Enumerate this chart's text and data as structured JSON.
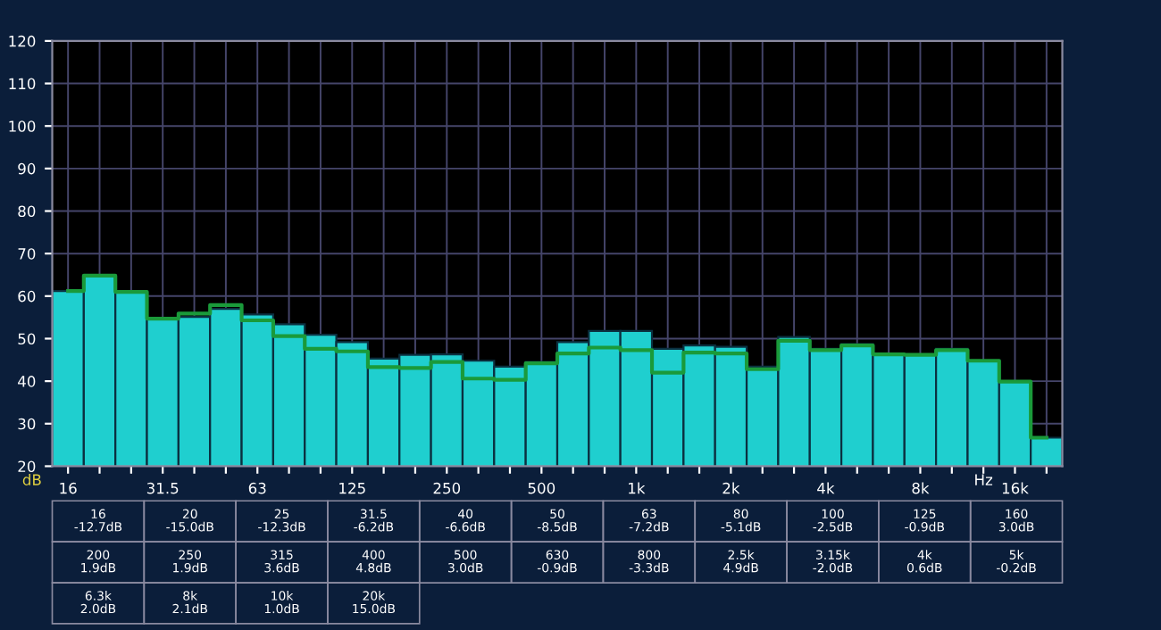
{
  "chart_data": {
    "type": "bar",
    "categories": [
      "16",
      null,
      null,
      "31.5",
      null,
      null,
      "63",
      null,
      null,
      "125",
      null,
      null,
      "250",
      null,
      null,
      "500",
      null,
      null,
      "1k",
      null,
      null,
      "2k",
      null,
      null,
      "4k",
      null,
      null,
      "8k",
      null,
      null,
      "16k",
      null
    ],
    "xlabel": "Hz",
    "ylabel": "dB",
    "series": [
      {
        "color": "#1fcfcf",
        "values": [
          61.2,
          64.8,
          61.0,
          54.7,
          55.1,
          57.0,
          55.7,
          53.4,
          50.9,
          49.2,
          45.3,
          46.2,
          46.3,
          44.8,
          43.4,
          44.5,
          49.2,
          51.8,
          51.8,
          47.6,
          48.4,
          48.1,
          43.4,
          50.4,
          47.6,
          48.7,
          46.3,
          46.2,
          47.6,
          44.8,
          39.9,
          26.7
        ]
      },
      {
        "type": "step",
        "color": "#1a9a3a",
        "values": [
          61.2,
          64.8,
          61.0,
          54.7,
          55.9,
          57.9,
          54.3,
          50.6,
          47.6,
          47.0,
          43.3,
          43.1,
          44.5,
          40.6,
          40.3,
          44.2,
          46.5,
          47.9,
          47.3,
          42.0,
          46.7,
          46.5,
          42.8,
          49.5,
          47.3,
          48.4,
          46.3,
          46.2,
          47.3,
          44.8,
          39.9,
          26.7
        ]
      }
    ],
    "ylim": [
      20,
      120
    ],
    "yticks": [
      20,
      30,
      40,
      50,
      60,
      70,
      80,
      90,
      100,
      110,
      120
    ],
    "grid": true,
    "annotations": [
      "16\n-12.7dB",
      "20\n-15.0dB",
      "25\n-12.3dB",
      "31.5\n-6.2dB",
      "40\n-6.6dB",
      "50\n-8.5dB",
      "63\n-7.2dB",
      "80\n-5.1dB",
      "100\n-2.5dB",
      "125\n-0.9dB",
      "160\n3.0dB",
      "200\n1.9dB",
      "250\n1.9dB",
      "315\n3.6dB",
      "400\n4.8dB",
      "500\n3.0dB",
      "630\n-0.9dB",
      "800\n-3.3dB",
      "2.5k\n4.9dB",
      "3.15k\n-2.0dB",
      "4k\n0.6dB",
      "5k\n-0.2dB",
      "6.3k\n2.0dB",
      "8k\n2.1dB",
      "10k\n1.0dB",
      "20k\n15.0dB"
    ]
  }
}
